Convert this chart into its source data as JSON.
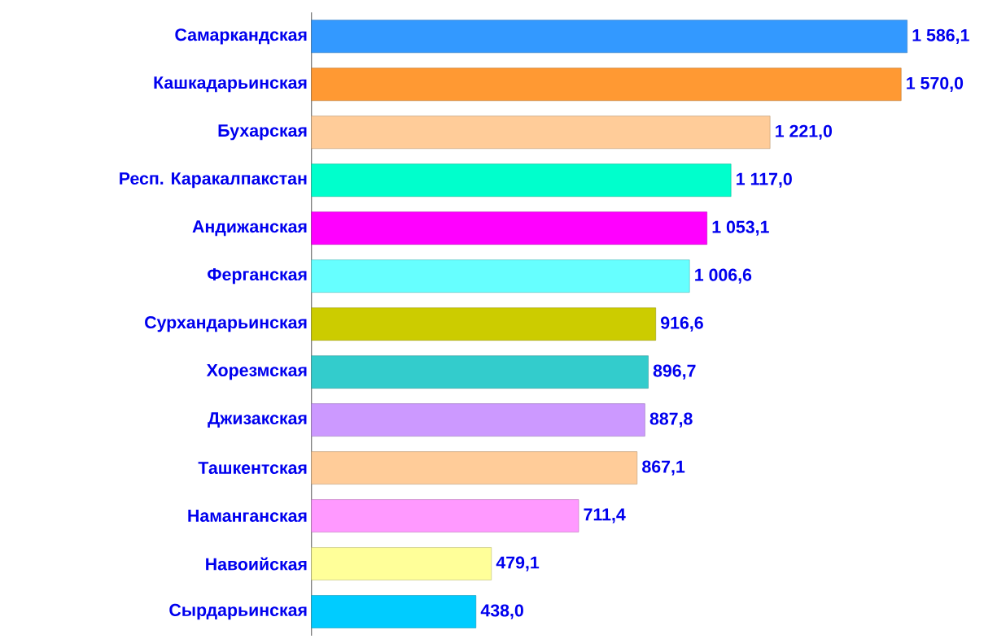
{
  "chart_data": {
    "type": "bar",
    "orientation": "horizontal",
    "categories": [
      "Самаркандская",
      "Кашкадарьинская",
      "Бухарская",
      "Респ. Каракалпакстан",
      "Андижанская",
      "Ферганская",
      "Сурхандарьинская",
      "Хорезмская",
      "Джизакская",
      "Ташкентская",
      "Наманганская",
      "Навоийская",
      "Сырдарьинская"
    ],
    "values": [
      1586.1,
      1570.0,
      1221.0,
      1117.0,
      1053.1,
      1006.6,
      916.6,
      896.7,
      887.8,
      867.1,
      711.4,
      479.1,
      438.0
    ],
    "value_labels": [
      "1 586,1",
      "1 570,0",
      "1 221,0",
      "1 117,0",
      "1 053,1",
      "1 006,6",
      "916,6",
      "896,7",
      "887,8",
      "867,1",
      "711,4",
      "479,1",
      "438,0"
    ],
    "colors": [
      "#3399ff",
      "#ff9933",
      "#ffcc99",
      "#00ffcc",
      "#ff00ff",
      "#66ffff",
      "#cccc00",
      "#33cccc",
      "#cc99ff",
      "#ffcc99",
      "#ff99ff",
      "#ffff99",
      "#00ccff"
    ]
  }
}
